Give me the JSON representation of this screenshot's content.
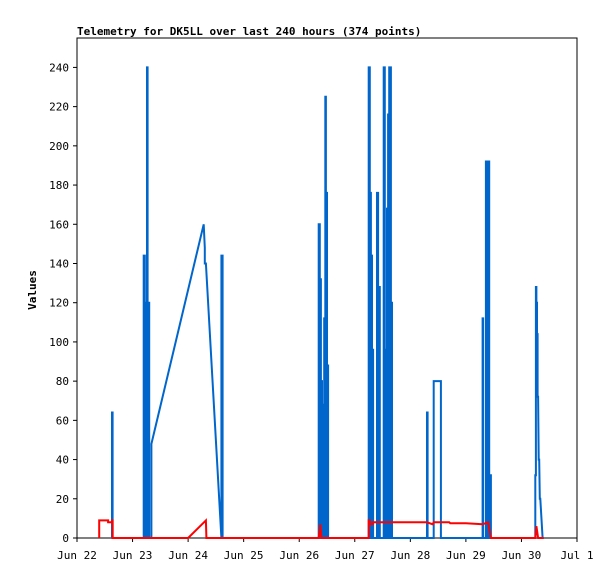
{
  "chart_data": {
    "type": "line",
    "title": "Telemetry for DK5LL over last 240 hours (374 points)",
    "xlabel": "",
    "ylabel": "Values",
    "x_ticks": [
      "Jun 22",
      "Jun 23",
      "Jun 24",
      "Jun 25",
      "Jun 26",
      "Jun 27",
      "Jun 28",
      "Jun 29",
      "Jun 30",
      "Jul 1"
    ],
    "y_ticks": [
      "0",
      "20",
      "40",
      "60",
      "80",
      "100",
      "120",
      "140",
      "160",
      "180",
      "200",
      "220",
      "240"
    ],
    "ylim": [
      0,
      255
    ],
    "xlim_days": [
      0,
      9
    ],
    "grid": false,
    "legend": "none",
    "colors": {
      "blue_series": "#0066cc",
      "red_series": "#ff0000"
    },
    "series": [
      {
        "color": "#0066cc",
        "points": [
          [
            0.63,
            0
          ],
          [
            0.63,
            64
          ],
          [
            0.64,
            64
          ],
          [
            0.64,
            0
          ],
          [
            1.2,
            0
          ],
          [
            1.2,
            144
          ],
          [
            1.22,
            144
          ],
          [
            1.22,
            0
          ],
          [
            1.24,
            0
          ],
          [
            1.24,
            120
          ],
          [
            1.25,
            120
          ],
          [
            1.25,
            0
          ],
          [
            1.26,
            0
          ],
          [
            1.26,
            240
          ],
          [
            1.27,
            240
          ],
          [
            1.27,
            0
          ],
          [
            1.29,
            0
          ],
          [
            1.29,
            120
          ],
          [
            1.3,
            120
          ],
          [
            1.3,
            0
          ],
          [
            1.34,
            0
          ],
          [
            1.34,
            48
          ],
          [
            2.28,
            160
          ],
          [
            2.3,
            148
          ],
          [
            2.3,
            140
          ],
          [
            2.32,
            140
          ],
          [
            2.6,
            0
          ],
          [
            2.6,
            144
          ],
          [
            2.62,
            144
          ],
          [
            2.62,
            0
          ],
          [
            4.35,
            0
          ],
          [
            4.35,
            160
          ],
          [
            4.37,
            160
          ],
          [
            4.37,
            0
          ],
          [
            4.38,
            0
          ],
          [
            4.38,
            132
          ],
          [
            4.39,
            132
          ],
          [
            4.39,
            0
          ],
          [
            4.4,
            0
          ],
          [
            4.4,
            80
          ],
          [
            4.41,
            80
          ],
          [
            4.41,
            28
          ],
          [
            4.42,
            28
          ],
          [
            4.42,
            40
          ],
          [
            4.43,
            40
          ],
          [
            4.43,
            0
          ],
          [
            4.44,
            0
          ],
          [
            4.44,
            68
          ],
          [
            4.45,
            68
          ],
          [
            4.45,
            112
          ],
          [
            4.46,
            112
          ],
          [
            4.46,
            0
          ],
          [
            4.47,
            0
          ],
          [
            4.47,
            225
          ],
          [
            4.48,
            225
          ],
          [
            4.48,
            0
          ],
          [
            4.49,
            0
          ],
          [
            4.49,
            176
          ],
          [
            4.5,
            176
          ],
          [
            4.5,
            0
          ],
          [
            4.51,
            0
          ],
          [
            4.51,
            88
          ],
          [
            4.52,
            88
          ],
          [
            4.52,
            0
          ],
          [
            5.25,
            0
          ],
          [
            5.25,
            240
          ],
          [
            5.27,
            240
          ],
          [
            5.27,
            0
          ],
          [
            5.28,
            0
          ],
          [
            5.28,
            176
          ],
          [
            5.29,
            176
          ],
          [
            5.29,
            0
          ],
          [
            5.3,
            0
          ],
          [
            5.3,
            144
          ],
          [
            5.31,
            144
          ],
          [
            5.31,
            0
          ],
          [
            5.32,
            0
          ],
          [
            5.32,
            96
          ],
          [
            5.33,
            96
          ],
          [
            5.33,
            0
          ],
          [
            5.4,
            0
          ],
          [
            5.4,
            176
          ],
          [
            5.42,
            176
          ],
          [
            5.42,
            0
          ],
          [
            5.44,
            0
          ],
          [
            5.44,
            128
          ],
          [
            5.45,
            128
          ],
          [
            5.45,
            0
          ],
          [
            5.52,
            0
          ],
          [
            5.52,
            240
          ],
          [
            5.54,
            240
          ],
          [
            5.54,
            0
          ],
          [
            5.56,
            0
          ],
          [
            5.56,
            96
          ],
          [
            5.57,
            96
          ],
          [
            5.57,
            0
          ],
          [
            5.58,
            0
          ],
          [
            5.58,
            168
          ],
          [
            5.59,
            168
          ],
          [
            5.59,
            0
          ],
          [
            5.6,
            0
          ],
          [
            5.6,
            216
          ],
          [
            5.61,
            216
          ],
          [
            5.61,
            0
          ],
          [
            5.62,
            0
          ],
          [
            5.62,
            240
          ],
          [
            5.63,
            240
          ],
          [
            5.63,
            0
          ],
          [
            5.64,
            0
          ],
          [
            5.64,
            240
          ],
          [
            5.65,
            240
          ],
          [
            5.65,
            0
          ],
          [
            5.66,
            0
          ],
          [
            5.66,
            120
          ],
          [
            5.67,
            120
          ],
          [
            5.67,
            0
          ],
          [
            6.3,
            0
          ],
          [
            6.3,
            64
          ],
          [
            6.31,
            64
          ],
          [
            6.31,
            0
          ],
          [
            6.42,
            0
          ],
          [
            6.42,
            80
          ],
          [
            6.55,
            80
          ],
          [
            6.55,
            0
          ],
          [
            7.3,
            0
          ],
          [
            7.3,
            112
          ],
          [
            7.31,
            112
          ],
          [
            7.31,
            0
          ],
          [
            7.36,
            0
          ],
          [
            7.36,
            192
          ],
          [
            7.38,
            192
          ],
          [
            7.38,
            0
          ],
          [
            7.4,
            0
          ],
          [
            7.4,
            192
          ],
          [
            7.42,
            192
          ],
          [
            7.42,
            0
          ],
          [
            7.44,
            0
          ],
          [
            7.44,
            32
          ],
          [
            7.45,
            32
          ],
          [
            7.45,
            0
          ],
          [
            8.25,
            0
          ],
          [
            8.25,
            32
          ],
          [
            8.26,
            32
          ],
          [
            8.26,
            128
          ],
          [
            8.27,
            128
          ],
          [
            8.27,
            120
          ],
          [
            8.28,
            120
          ],
          [
            8.28,
            104
          ],
          [
            8.29,
            104
          ],
          [
            8.29,
            72
          ],
          [
            8.3,
            72
          ],
          [
            8.31,
            40
          ],
          [
            8.32,
            40
          ],
          [
            8.33,
            20
          ],
          [
            8.34,
            20
          ],
          [
            8.38,
            0
          ],
          [
            8.4,
            0
          ]
        ]
      },
      {
        "color": "#ff0000",
        "points": [
          [
            0.4,
            0
          ],
          [
            0.4,
            9
          ],
          [
            0.56,
            9
          ],
          [
            0.56,
            8
          ],
          [
            0.63,
            8
          ],
          [
            0.63,
            9
          ],
          [
            0.64,
            9
          ],
          [
            0.64,
            0
          ],
          [
            2.0,
            0
          ],
          [
            2.32,
            9
          ],
          [
            2.33,
            0
          ],
          [
            4.35,
            0
          ],
          [
            4.38,
            7
          ],
          [
            4.4,
            0
          ],
          [
            5.25,
            0
          ],
          [
            5.25,
            9
          ],
          [
            5.27,
            9
          ],
          [
            5.27,
            7
          ],
          [
            5.32,
            7
          ],
          [
            5.32,
            8
          ],
          [
            6.3,
            8
          ],
          [
            6.4,
            7
          ],
          [
            6.42,
            8
          ],
          [
            6.7,
            8
          ],
          [
            6.72,
            7.5
          ],
          [
            7.0,
            7.5
          ],
          [
            7.3,
            7
          ],
          [
            7.4,
            8
          ],
          [
            7.45,
            0
          ],
          [
            8.25,
            0
          ],
          [
            8.27,
            6
          ],
          [
            8.3,
            0
          ],
          [
            8.4,
            0
          ]
        ]
      }
    ]
  }
}
